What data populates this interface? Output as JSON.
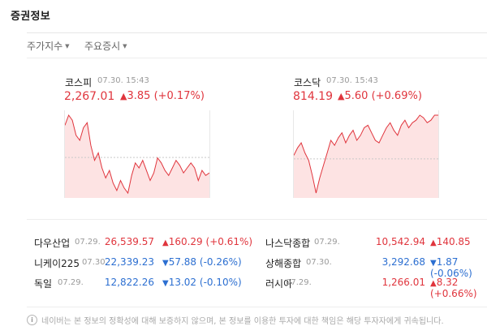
{
  "header": {
    "title": "증권정보"
  },
  "tabs": [
    {
      "label": "주가지수"
    },
    {
      "label": "주요증시"
    }
  ],
  "indices": {
    "kospi": {
      "name": "코스피",
      "time": "07.30. 15:43",
      "value": "2,267.01",
      "change": "3.85",
      "percent": "(+0.17%)",
      "direction": "up"
    },
    "kosdaq": {
      "name": "코스닥",
      "time": "07.30. 15:43",
      "value": "814.19",
      "change": "5.60",
      "percent": "(+0.69%)",
      "direction": "up"
    }
  },
  "world": [
    {
      "name": "다우산업",
      "date": "07.29.",
      "value": "26,539.57",
      "change": "160.29",
      "percent": "(+0.61%)",
      "direction": "up"
    },
    {
      "name": "나스닥종합",
      "date": "07.29.",
      "value": "10,542.94",
      "change": "140.85",
      "percent": "",
      "direction": "up"
    },
    {
      "name": "니케이225",
      "date": "07.30.",
      "value": "22,339.23",
      "change": "57.88",
      "percent": "(-0.26%)",
      "direction": "down"
    },
    {
      "name": "상해종합",
      "date": "07.30.",
      "value": "3,292.68",
      "change": "1.87",
      "percent": "(-0.06%)",
      "direction": "down"
    },
    {
      "name": "독일",
      "date": "07.29.",
      "value": "12,822.26",
      "change": "13.02",
      "percent": "(-0.10%)",
      "direction": "down"
    },
    {
      "name": "러시아",
      "date": "07.29.",
      "value": "1,266.01",
      "change": "8.32",
      "percent": "(+0.66%)",
      "direction": "up"
    }
  ],
  "notice": {
    "text": "네이버는 본 정보의 정확성에 대해 보증하지 않으며, 본 정보를 이용한 투자에 대한 책임은 해당 투자자에게 귀속됩니다."
  },
  "colors": {
    "up": "#e0353d",
    "down": "#2c6fd1",
    "chart_fill": "#fde3e3",
    "baseline": "#c9c9c9"
  },
  "icons": {
    "up": "triangle-up-icon",
    "down": "triangle-down-icon",
    "info": "info-icon"
  },
  "chart_data": [
    {
      "type": "area",
      "title": "",
      "series": [
        {
          "values": [
            2276,
            2280,
            2278,
            2272,
            2270,
            2275,
            2277,
            2268,
            2262,
            2265,
            2259,
            2255,
            2258,
            2253,
            2250,
            2254,
            2251,
            2249,
            2256,
            2261,
            2259,
            2262,
            2258,
            2254,
            2257,
            2263,
            2261,
            2258,
            2256,
            2259,
            2262,
            2260,
            2257,
            2259,
            2261,
            2259,
            2254,
            2258,
            2256,
            2257
          ]
        }
      ],
      "baseline": 2263.16
    },
    {
      "type": "area",
      "title": "",
      "series": [
        {
          "values": [
            810,
            813,
            815,
            811,
            808,
            802,
            795,
            801,
            806,
            811,
            816,
            814,
            817,
            819,
            815,
            818,
            820,
            816,
            818,
            821,
            822,
            819,
            816,
            815,
            818,
            821,
            823,
            820,
            818,
            822,
            824,
            821,
            823,
            824,
            826,
            825,
            823,
            824,
            826,
            826
          ]
        }
      ],
      "baseline": 808.59
    }
  ]
}
